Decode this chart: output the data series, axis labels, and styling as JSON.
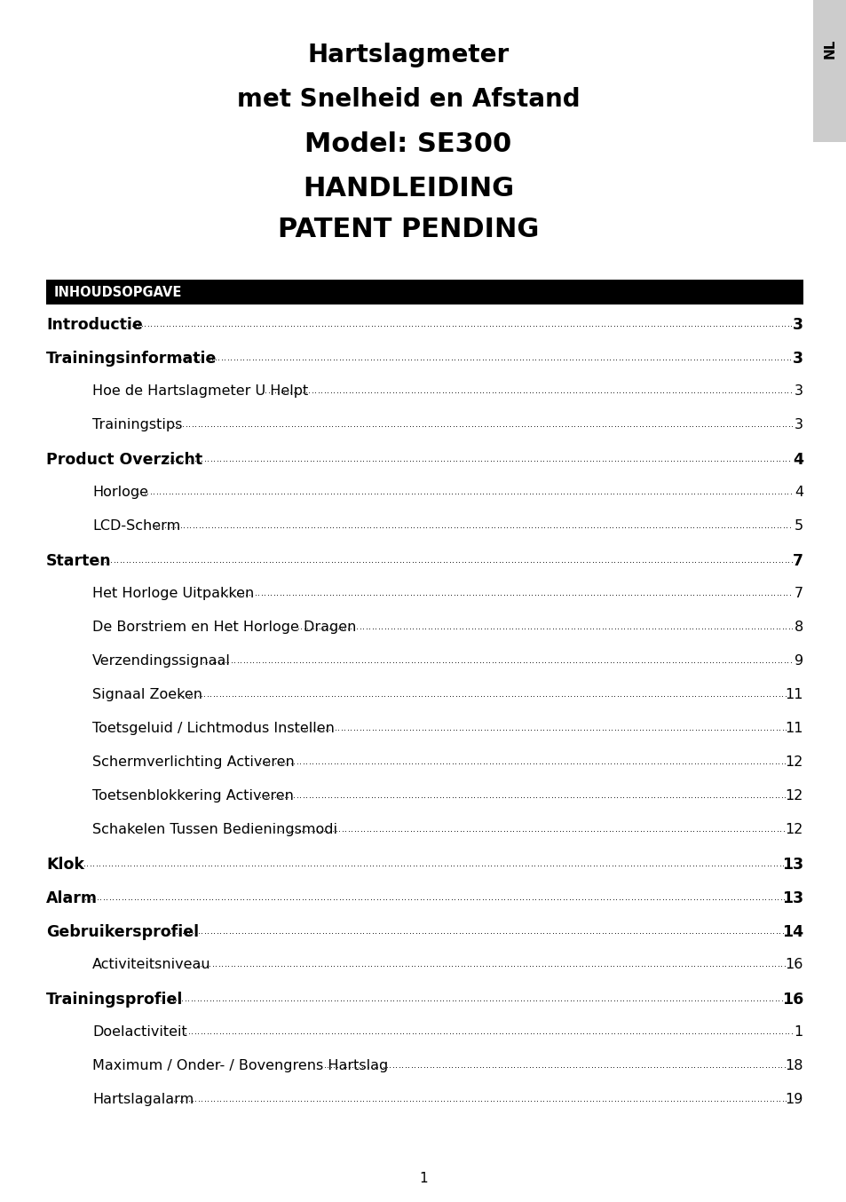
{
  "title_lines": [
    {
      "text": "Hartslagmeter",
      "bold": true,
      "size": 20
    },
    {
      "text": "met Snelheid en Afstand",
      "bold": true,
      "size": 20
    },
    {
      "text": "Model: SE300",
      "bold": true,
      "size": 22
    },
    {
      "text": "HANDLEIDING",
      "bold": true,
      "size": 22
    },
    {
      "text": "PATENT PENDING",
      "bold": true,
      "size": 22
    }
  ],
  "toc_header": "INHOUDSOPGAVE",
  "toc_entries": [
    {
      "text": "Introductie",
      "page": "3",
      "bold": true,
      "indent": 0
    },
    {
      "text": "Trainingsinformatie",
      "page": "3",
      "bold": true,
      "indent": 0
    },
    {
      "text": "Hoe de Hartslagmeter U Helpt",
      "page": "3",
      "bold": false,
      "indent": 1
    },
    {
      "text": "Trainingstips",
      "page": "3",
      "bold": false,
      "indent": 1
    },
    {
      "text": "Product Overzicht",
      "page": "4",
      "bold": true,
      "indent": 0
    },
    {
      "text": "Horloge",
      "page": "4",
      "bold": false,
      "indent": 1
    },
    {
      "text": "LCD-Scherm",
      "page": "5",
      "bold": false,
      "indent": 1
    },
    {
      "text": "Starten",
      "page": "7",
      "bold": true,
      "indent": 0
    },
    {
      "text": "Het Horloge Uitpakken",
      "page": "7",
      "bold": false,
      "indent": 1
    },
    {
      "text": "De Borstriem en Het Horloge Dragen",
      "page": "8",
      "bold": false,
      "indent": 1
    },
    {
      "text": "Verzendingssignaal",
      "page": "9",
      "bold": false,
      "indent": 1
    },
    {
      "text": "Signaal Zoeken",
      "page": "11",
      "bold": false,
      "indent": 1
    },
    {
      "text": "Toetsgeluid / Lichtmodus Instellen",
      "page": "11",
      "bold": false,
      "indent": 1
    },
    {
      "text": "Schermverlichting Activeren",
      "page": "12",
      "bold": false,
      "indent": 1
    },
    {
      "text": "Toetsenblokkering Activeren",
      "page": "12",
      "bold": false,
      "indent": 1
    },
    {
      "text": "Schakelen Tussen Bedieningsmodi",
      "page": "12",
      "bold": false,
      "indent": 1
    },
    {
      "text": "Klok",
      "page": "13",
      "bold": true,
      "indent": 0
    },
    {
      "text": "Alarm",
      "page": "13",
      "bold": true,
      "indent": 0
    },
    {
      "text": "Gebruikersprofiel",
      "page": "14",
      "bold": true,
      "indent": 0
    },
    {
      "text": "Activiteitsniveau",
      "page": "16",
      "bold": false,
      "indent": 1
    },
    {
      "text": "Trainingsprofiel",
      "page": "16",
      "bold": true,
      "indent": 0
    },
    {
      "text": "Doelactiviteit",
      "page": "1",
      "bold": false,
      "indent": 1
    },
    {
      "text": "Maximum / Onder- / Bovengrens Hartslag",
      "page": "18",
      "bold": false,
      "indent": 1
    },
    {
      "text": "Hartslagalarm",
      "page": "19",
      "bold": false,
      "indent": 1
    }
  ],
  "page_number": "1",
  "tab_label": "NL",
  "bg_color": "#ffffff",
  "toc_header_bg": "#000000",
  "toc_header_fg": "#ffffff",
  "tab_bg": "#cccccc",
  "tab_fg": "#000000"
}
